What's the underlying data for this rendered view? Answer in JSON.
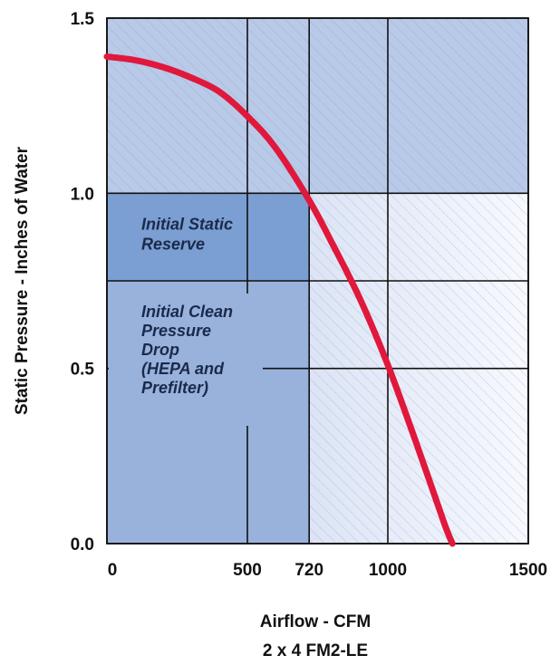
{
  "chart_data": {
    "type": "line",
    "ylabel": "Static Pressure - Inches of Water",
    "xlabel": "Airflow - CFM",
    "subtitle": "2 x 4 FM2-LE",
    "xlim": [
      0,
      1500
    ],
    "ylim": [
      0,
      1.5
    ],
    "x_ticks": [
      {
        "value": 0,
        "label": "0"
      },
      {
        "value": 500,
        "label": "500"
      },
      {
        "value": 720,
        "label": "720"
      },
      {
        "value": 1000,
        "label": "1000"
      },
      {
        "value": 1500,
        "label": "1500"
      }
    ],
    "y_ticks": [
      {
        "value": 0,
        "label": "0.0"
      },
      {
        "value": 0.5,
        "label": "0.5"
      },
      {
        "value": 1.0,
        "label": "1.0"
      },
      {
        "value": 1.5,
        "label": "1.5"
      }
    ],
    "grid": true,
    "grid_y_extra": [
      0.75
    ],
    "series": [
      {
        "color": "#e0183c",
        "x": [
          0,
          100,
          200,
          300,
          400,
          500,
          600,
          720,
          800,
          900,
          1000,
          1100,
          1200,
          1230
        ],
        "y": [
          1.39,
          1.38,
          1.36,
          1.33,
          1.29,
          1.22,
          1.13,
          0.98,
          0.86,
          0.7,
          0.51,
          0.29,
          0.06,
          0.0
        ]
      }
    ],
    "regions": [
      {
        "label_lines": [
          "Initial Static",
          "Reserve"
        ],
        "x": [
          0,
          720
        ],
        "y": [
          0.75,
          1.0
        ],
        "color": "#7b9fd2"
      },
      {
        "label_lines": [
          "Initial Clean",
          "Pressure",
          "Drop",
          "(HEPA and",
          "Prefilter)"
        ],
        "x": [
          0,
          720
        ],
        "y": [
          0,
          0.75
        ],
        "color": "#98b2dc"
      }
    ],
    "colors": {
      "upper_band": "#b9c9e8",
      "lower_gradient_light": "#f7f9fe"
    }
  }
}
